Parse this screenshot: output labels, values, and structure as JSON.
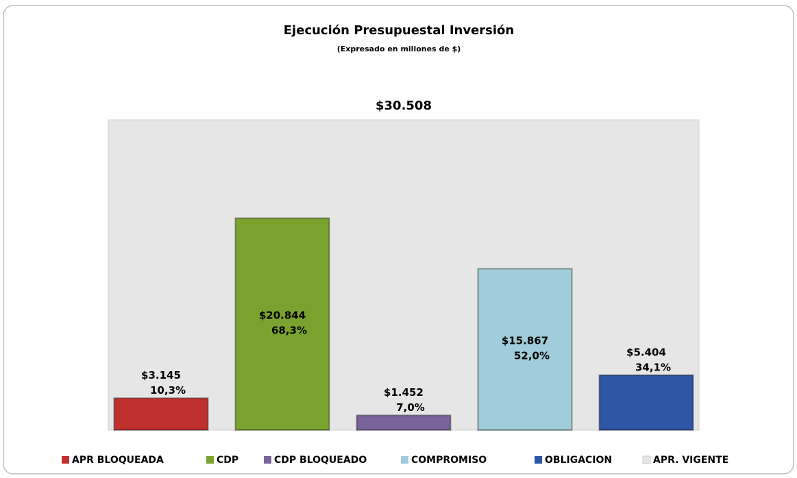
{
  "chart_data": {
    "type": "bar",
    "title": "Ejecución Presupuestal Inversión",
    "subtitle": "(Expresado en millones de $)",
    "categories": [
      "APR BLOQUEADA",
      "CDP",
      "CDP BLOQUEADO",
      "COMPROMISO",
      "OBLIGACION",
      "APR. VIGENTE"
    ],
    "values": [
      3145,
      20844,
      1452,
      15867,
      5404,
      30508
    ],
    "value_labels": [
      "$3.145",
      "$20.844",
      "$1.452",
      "$15.867",
      "$5.404",
      "$30.508"
    ],
    "percents": [
      10.3,
      68.3,
      7.0,
      52.0,
      34.1,
      null
    ],
    "percent_labels": [
      "10,3%",
      "68,3%",
      "7,0%",
      "52,0%",
      "34,1%",
      null
    ],
    "colors": [
      "#c0302f",
      "#7aa22f",
      "#7a639a",
      "#a0cdd9",
      "#2f55a5",
      "#e6e6e6"
    ],
    "legend": "bottom"
  }
}
